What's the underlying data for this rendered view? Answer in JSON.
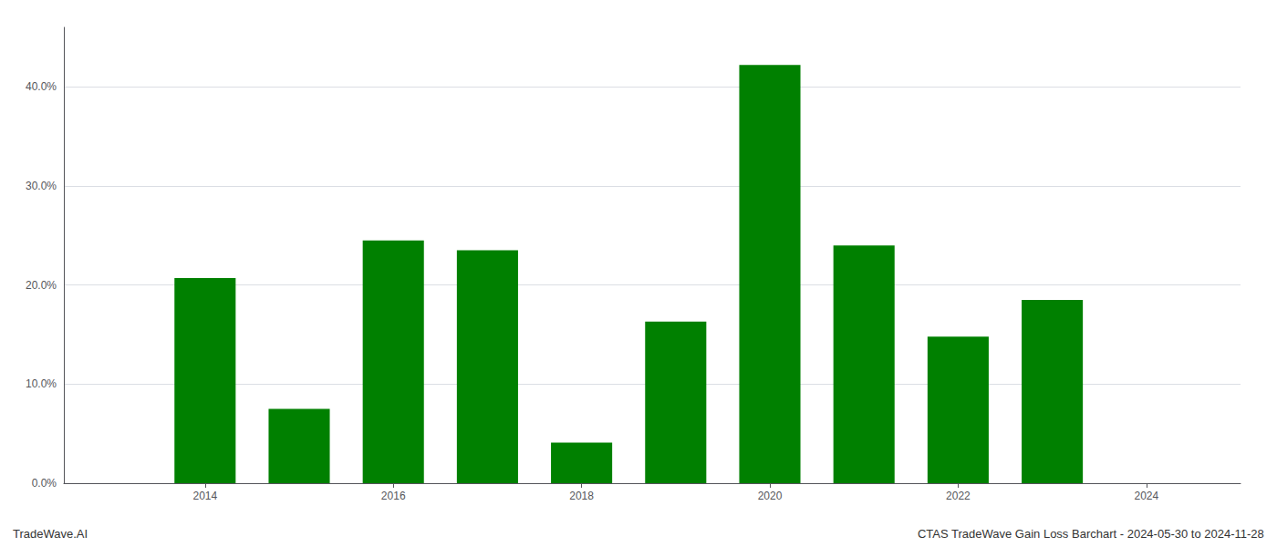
{
  "chart_data": {
    "type": "bar",
    "x": [
      2014,
      2015,
      2016,
      2017,
      2018,
      2019,
      2020,
      2021,
      2022,
      2023
    ],
    "values": [
      0.207,
      0.075,
      0.245,
      0.235,
      0.041,
      0.163,
      0.422,
      0.24,
      0.148,
      0.185
    ],
    "color": "#008000",
    "xlim": [
      2012.5,
      2025.0
    ],
    "xticks": [
      2014,
      2016,
      2018,
      2020,
      2022,
      2024
    ],
    "ylim": [
      0.0,
      0.46
    ],
    "yticks": [
      {
        "value": 0.0,
        "label": "0.0%"
      },
      {
        "value": 0.1,
        "label": "10.0%"
      },
      {
        "value": 0.2,
        "label": "20.0%"
      },
      {
        "value": 0.3,
        "label": "30.0%"
      },
      {
        "value": 0.4,
        "label": "40.0%"
      }
    ],
    "grid": true,
    "annotations": [
      "TradeWave.AI",
      "CTAS TradeWave Gain Loss Barchart - 2024-05-30 to 2024-11-28"
    ]
  }
}
